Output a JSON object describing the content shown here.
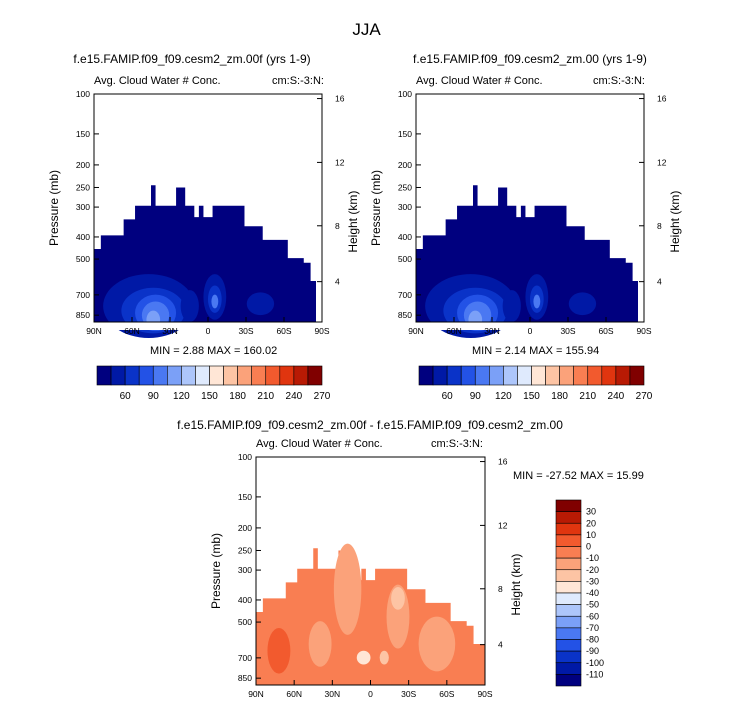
{
  "page": {
    "title": "JJA"
  },
  "panels": [
    {
      "title": "f.e15.FAMIP.f09_f09.cesm2_zm.00f (yrs 1-9)",
      "left_label": "Avg. Cloud Water # Conc.",
      "right_label": "cm:S:-3:N:",
      "minmax": "MIN =   2.88  MAX = 160.02"
    },
    {
      "title": "f.e15.FAMIP.f09_f09.cesm2_zm.00 (yrs 1-9)",
      "left_label": "Avg. Cloud Water # Conc.",
      "right_label": "cm:S:-3:N:",
      "minmax": "MIN =   2.14  MAX = 155.94"
    },
    {
      "title": "f.e15.FAMIP.f09_f09.cesm2_zm.00f - f.e15.FAMIP.f09_f09.cesm2_zm.00",
      "left_label": "Avg. Cloud Water # Conc.",
      "right_label": "cm:S:-3:N:",
      "minmax": "MIN = -27.52  MAX =  15.99"
    }
  ],
  "chart_data": [
    {
      "type": "heatmap",
      "title": "f.e15.FAMIP.f09_f09.cesm2_zm.00f (yrs 1-9)",
      "ylabel": "Pressure (mb)",
      "ylabel_right": "Height (km)",
      "xlabel": "",
      "x_ticks": [
        "90N",
        "60N",
        "30N",
        "0",
        "30S",
        "60S",
        "90S"
      ],
      "y_ticks": [
        "100",
        "150",
        "200",
        "250",
        "300",
        "400",
        "500",
        "700",
        "850"
      ],
      "y_right_ticks": [
        "16",
        "12",
        "8",
        "4"
      ],
      "min": 2.88,
      "max": 160.02
    },
    {
      "type": "heatmap",
      "title": "f.e15.FAMIP.f09_f09.cesm2_zm.00 (yrs 1-9)",
      "ylabel": "Pressure (mb)",
      "ylabel_right": "Height (km)",
      "xlabel": "",
      "x_ticks": [
        "90N",
        "60N",
        "30N",
        "0",
        "30S",
        "60S",
        "90S"
      ],
      "y_ticks": [
        "100",
        "150",
        "200",
        "250",
        "300",
        "400",
        "500",
        "700",
        "850"
      ],
      "y_right_ticks": [
        "16",
        "12",
        "8",
        "4"
      ],
      "min": 2.14,
      "max": 155.94
    },
    {
      "type": "heatmap",
      "title": "f.e15.FAMIP.f09_f09.cesm2_zm.00f - f.e15.FAMIP.f09_f09.cesm2_zm.00",
      "ylabel": "Pressure (mb)",
      "ylabel_right": "Height (km)",
      "xlabel": "",
      "x_ticks": [
        "90N",
        "60N",
        "30N",
        "0",
        "30S",
        "60S",
        "90S"
      ],
      "y_ticks": [
        "100",
        "150",
        "200",
        "250",
        "300",
        "400",
        "500",
        "700",
        "850"
      ],
      "y_right_ticks": [
        "16",
        "12",
        "8",
        "4"
      ],
      "min": -27.52,
      "max": 15.99
    }
  ],
  "colorbar_top": {
    "labels": [
      "60",
      "90",
      "120",
      "150",
      "180",
      "210",
      "240",
      "270"
    ],
    "colors": [
      "#00007f",
      "#0019a6",
      "#0a33c8",
      "#2352e6",
      "#4a78f2",
      "#7ba0f7",
      "#adc6fb",
      "#dfeafd",
      "#ffe6d6",
      "#fdc4a4",
      "#fba27a",
      "#f97e52",
      "#f25a2e",
      "#e0350f",
      "#b81a04",
      "#800000"
    ]
  },
  "colorbar_diff": {
    "labels": [
      "30",
      "20",
      "10",
      "0",
      "-10",
      "-20",
      "-30",
      "-40",
      "-50",
      "-60",
      "-70",
      "-80",
      "-90",
      "-100",
      "-110"
    ],
    "colors": [
      "#800000",
      "#b81a04",
      "#e0350f",
      "#f25a2e",
      "#f97e52",
      "#fba27a",
      "#fdc4a4",
      "#ffe6d6",
      "#dfeafd",
      "#adc6fb",
      "#7ba0f7",
      "#4a78f2",
      "#2352e6",
      "#0a33c8",
      "#0019a6",
      "#00007f"
    ]
  }
}
